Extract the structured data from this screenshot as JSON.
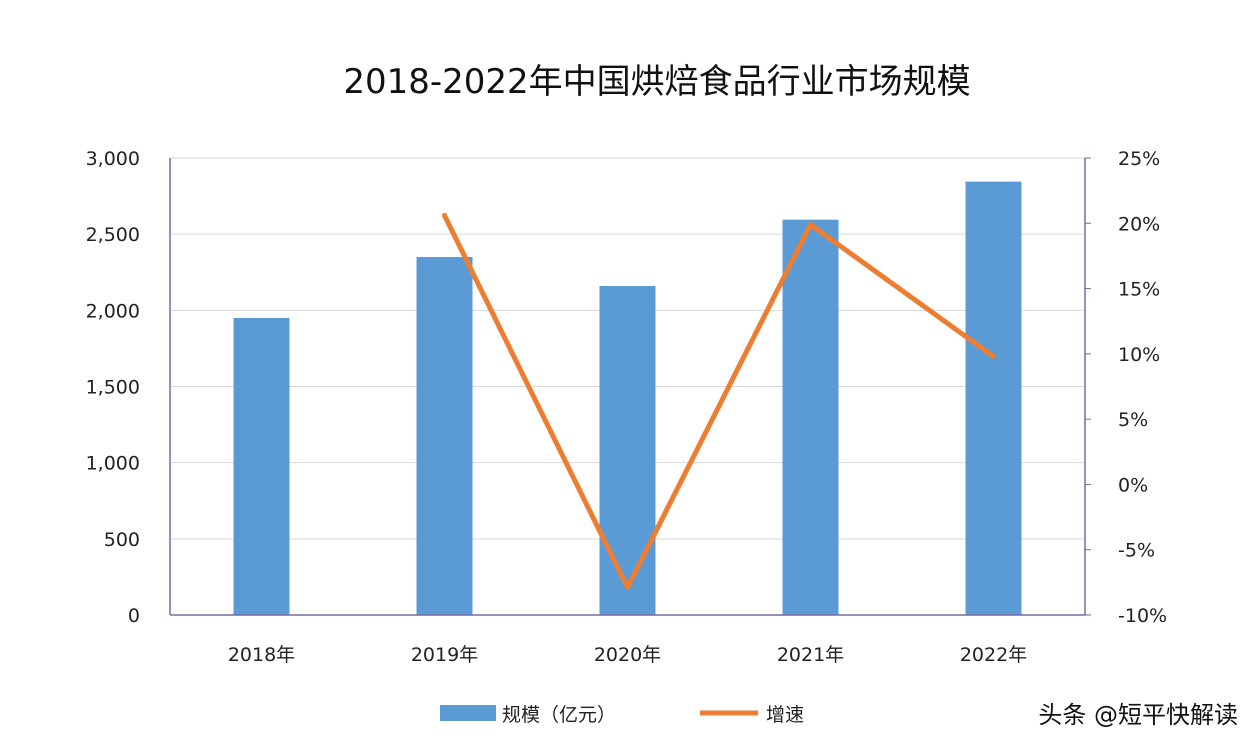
{
  "chart_data": {
    "type": "bar",
    "title": "2018-2022年中国烘焙食品行业市场规模",
    "categories": [
      "2018年",
      "2019年",
      "2020年",
      "2021年",
      "2022年"
    ],
    "series": [
      {
        "name": "规模（亿元）",
        "type": "bar",
        "axis": "left",
        "color": "#5b9bd5",
        "values": [
          1950,
          2350,
          2160,
          2595,
          2845
        ]
      },
      {
        "name": "增速",
        "type": "line",
        "axis": "right",
        "color": "#ed7d31",
        "values": [
          null,
          20.6,
          -7.9,
          19.9,
          9.8
        ]
      }
    ],
    "ylim": [
      0,
      3000
    ],
    "yticks": [
      "0",
      "500",
      "1,000",
      "1,500",
      "2,000",
      "2,500",
      "3,000"
    ],
    "y2lim": [
      -10,
      25
    ],
    "y2ticks": [
      "-10%",
      "-5%",
      "0%",
      "5%",
      "10%",
      "15%",
      "20%",
      "25%"
    ],
    "grid": true,
    "legend": "bottom"
  },
  "watermark": "头条 @短平快解读"
}
